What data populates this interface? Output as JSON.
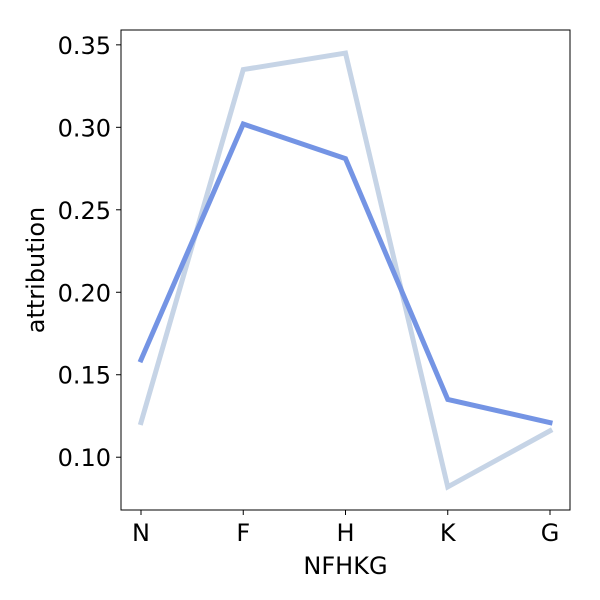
{
  "chart_data": {
    "type": "line",
    "title": "",
    "xlabel": "NFHKG",
    "ylabel": "attribution",
    "categories": [
      "N",
      "F",
      "H",
      "K",
      "G"
    ],
    "ylim": [
      0.068,
      0.359
    ],
    "yticks": [
      0.1,
      0.15,
      0.2,
      0.25,
      0.3,
      0.35
    ],
    "ytick_labels": [
      "0.10",
      "0.15",
      "0.20",
      "0.25",
      "0.30",
      "0.35"
    ],
    "grid": false,
    "legend": "none",
    "series": [
      {
        "color": "#c6d4e6",
        "values": [
          0.121,
          0.335,
          0.345,
          0.082,
          0.116
        ]
      },
      {
        "color": "#7494e4",
        "values": [
          0.159,
          0.302,
          0.281,
          0.135,
          0.121
        ]
      }
    ]
  }
}
